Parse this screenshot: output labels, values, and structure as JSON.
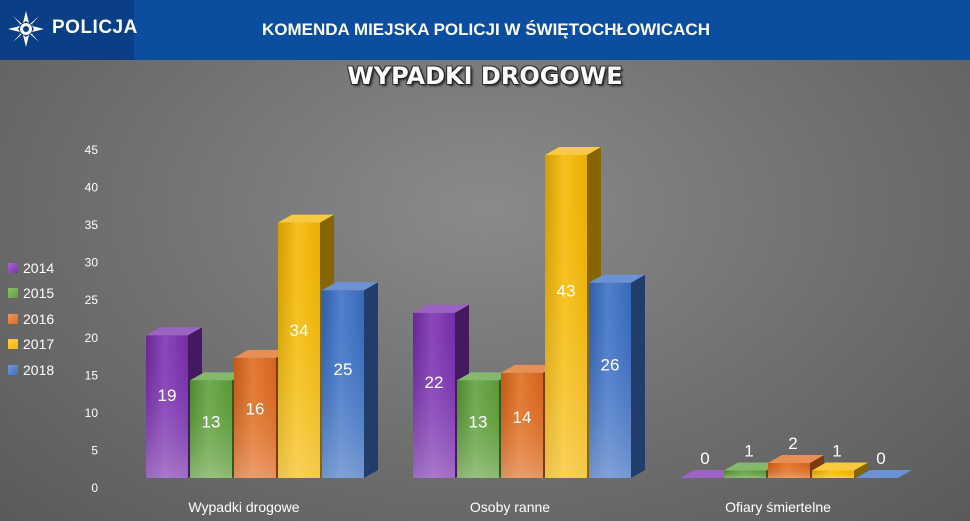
{
  "header": {
    "logo_text": "POLICJA",
    "title": "KOMENDA MIEJSKA POLICJI W ŚWIĘTOCHŁOWICACH",
    "background": "#0b4ea0",
    "logo_icon": "police-star-icon"
  },
  "chart_data": {
    "type": "bar",
    "title": "WYPADKI DROGOWE",
    "categories": [
      "Wypadki drogowe",
      "Osoby ranne",
      "Ofiary śmiertelne"
    ],
    "series": [
      {
        "name": "2014",
        "color": "#7a2fb0",
        "values": [
          19,
          22,
          0
        ]
      },
      {
        "name": "2015",
        "color": "#5ea03a",
        "values": [
          13,
          13,
          1
        ]
      },
      {
        "name": "2016",
        "color": "#e06a1c",
        "values": [
          16,
          14,
          2
        ]
      },
      {
        "name": "2017",
        "color": "#f5b800",
        "values": [
          34,
          43,
          1
        ]
      },
      {
        "name": "2018",
        "color": "#3a6fc4",
        "values": [
          25,
          26,
          0
        ]
      }
    ],
    "yticks": [
      "0",
      "5",
      "10",
      "15",
      "20",
      "25",
      "30",
      "35",
      "40",
      "45"
    ],
    "ylim": [
      0,
      45
    ],
    "grid": false,
    "legend_position": "left",
    "data_labels": true,
    "style": "3d-column"
  }
}
